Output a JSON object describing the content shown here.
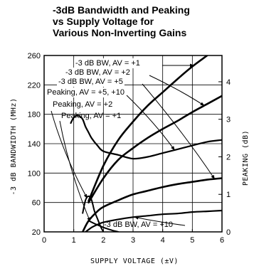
{
  "chart_data": {
    "type": "line",
    "title_lines": [
      "-3dB Bandwidth and Peaking",
      "vs Supply Voltage for",
      "Various Non-Inverting Gains"
    ],
    "xlabel": "SUPPLY VOLTAGE (±V)",
    "ylabel": "-3 dB BANDWIDTH (MHz)",
    "y2label": "PEAKING (dB)",
    "xlim": [
      0,
      6
    ],
    "ylim": [
      20,
      260
    ],
    "y2lim": [
      0,
      4.7
    ],
    "xticks": [
      "0",
      "1",
      "2",
      "3",
      "4",
      "5",
      "6"
    ],
    "yticks": [
      "20",
      "60",
      "100",
      "140",
      "180",
      "220",
      "260"
    ],
    "y2ticks": [
      "0",
      "1",
      "2",
      "3",
      "4"
    ],
    "grid": true,
    "series": [
      {
        "name": "-3 dB BW, AV = +1",
        "axis": "left",
        "x": [
          1.5,
          2,
          2.5,
          3,
          3.5,
          4,
          4.5,
          5,
          5.5
        ],
        "y": [
          62,
          110,
          145,
          170,
          192,
          210,
          228,
          245,
          260
        ]
      },
      {
        "name": "-3 dB BW, AV = +2",
        "axis": "left",
        "x": [
          1.5,
          2,
          2.5,
          3,
          3.5,
          4,
          4.5,
          5,
          5.5,
          6
        ],
        "y": [
          60,
          93,
          118,
          134,
          148,
          160,
          171,
          183,
          194,
          205
        ]
      },
      {
        "name": "-3 dB BW, AV = +5",
        "axis": "left",
        "x": [
          1.3,
          1.5,
          1.8,
          2,
          2.5,
          3,
          3.5,
          4,
          4.5,
          5,
          5.5,
          6
        ],
        "y": [
          20,
          35,
          48,
          54,
          63,
          71,
          76,
          81,
          85,
          88,
          91,
          93
        ]
      },
      {
        "name": "-3 dB BW, AV = +10",
        "axis": "left",
        "x": [
          1.4,
          1.6,
          1.8,
          2,
          2.5,
          3,
          3.5,
          4,
          4.5,
          5,
          5.5,
          6
        ],
        "y": [
          20,
          26,
          30,
          33,
          37,
          40,
          42,
          44,
          45,
          47,
          48,
          49
        ]
      },
      {
        "name": "Peaking, AV = +5, +10",
        "axis": "right",
        "x": [
          0.9,
          1.0,
          1.1,
          1.2,
          1.3,
          1.4,
          1.5,
          1.6,
          1.8,
          2,
          2.5,
          3,
          3.5,
          4,
          4.5,
          5,
          5.5,
          6
        ],
        "y": [
          2.9,
          3.05,
          3.1,
          3.08,
          3.0,
          2.8,
          2.65,
          2.5,
          2.3,
          2.15,
          2.05,
          1.95,
          2.0,
          2.1,
          2.2,
          2.3,
          2.4,
          2.45
        ]
      },
      {
        "name": "Peaking, AV = +2",
        "axis": "right",
        "x": [
          1.3,
          1.4,
          1.5,
          1.6,
          1.7,
          1.8,
          1.9,
          2.0
        ],
        "y": [
          0.5,
          0.85,
          0.95,
          0.85,
          0.55,
          0.35,
          0.15,
          0.0
        ]
      },
      {
        "name": "Peaking, AV = +1",
        "axis": "right",
        "x": [
          1.5,
          1.7,
          2.0,
          2.3,
          2.5
        ],
        "y": [
          0.3,
          0.22,
          0.12,
          0.04,
          0.0
        ]
      }
    ],
    "annotations": [
      "-3 dB BW, AV = +1",
      "-3 dB BW, AV = +2",
      "-3 dB BW, AV = +5",
      "Peaking, AV = +5, +10",
      "Peaking, AV = +2",
      "Peaking, AV = +1",
      "-3 dB BW, AV = +10"
    ]
  }
}
